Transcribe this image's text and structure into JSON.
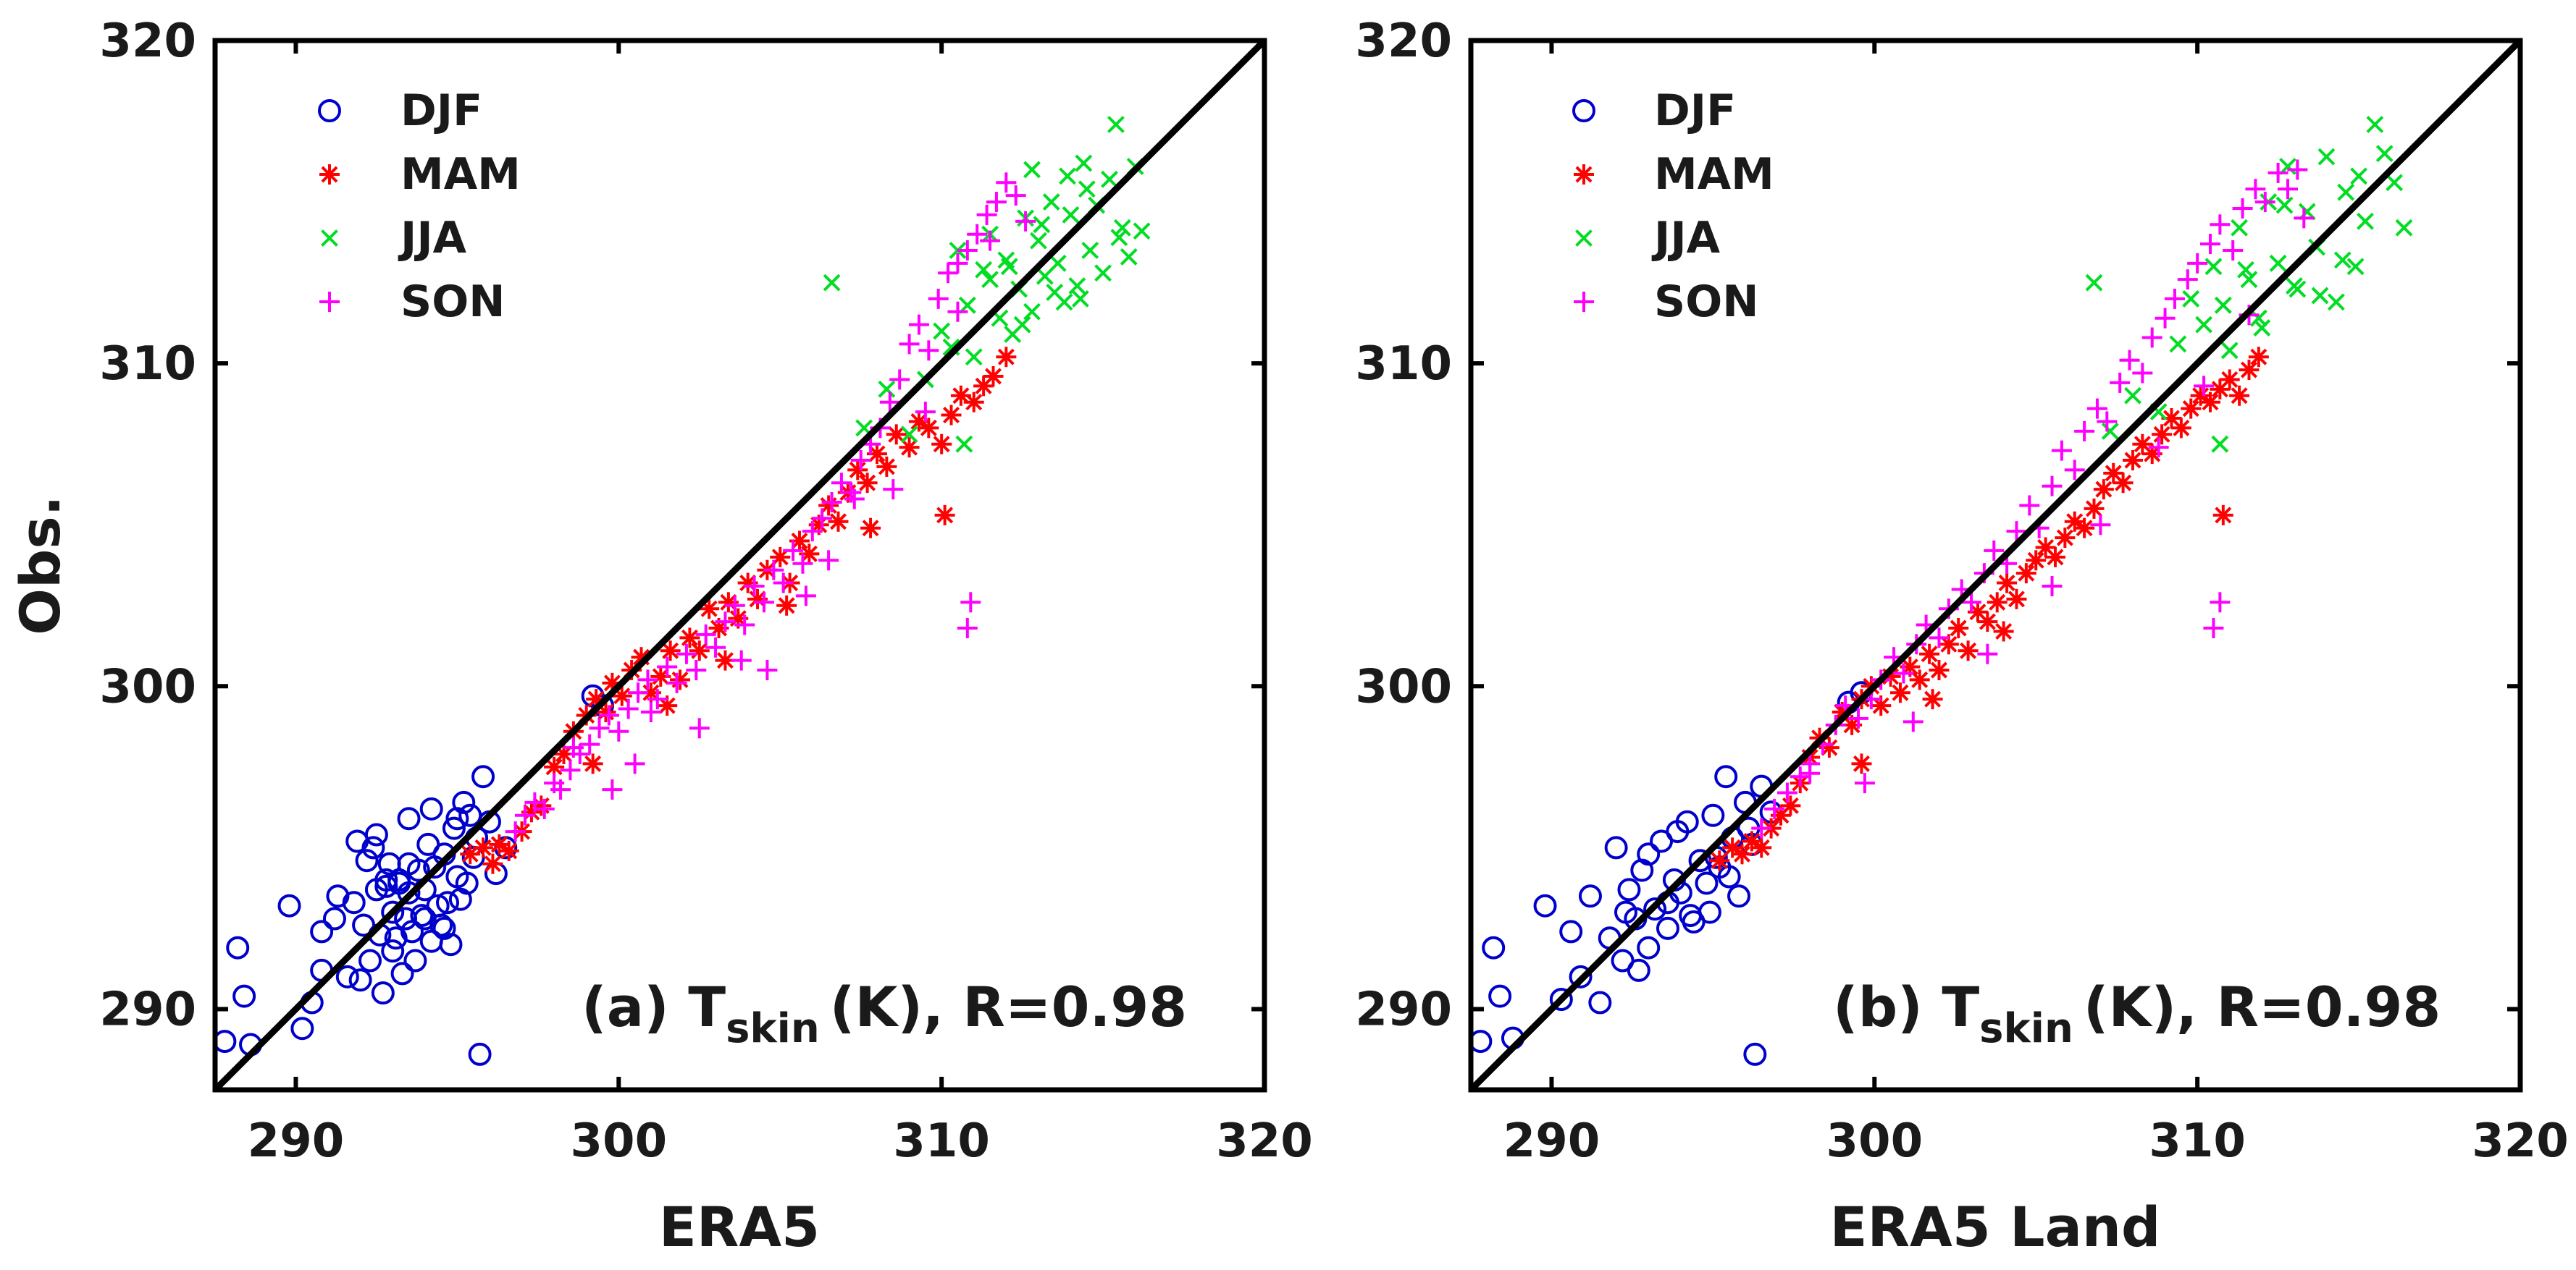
{
  "chart_data": [
    {
      "type": "scatter",
      "title": "(a) T_skin (K), R=0.98",
      "panel_label": "(a) T",
      "quantity_subscript": "skin",
      "unit_and_stat": "(K), R=0.98",
      "xlabel": "ERA5",
      "ylabel": "Obs.",
      "xlim": [
        287.5,
        320
      ],
      "ylim": [
        287.5,
        320
      ],
      "xticks": [
        290,
        300,
        310,
        320
      ],
      "yticks": [
        290,
        300,
        310,
        320
      ],
      "reference_line": "1:1",
      "legend_location": "top-left",
      "series": [
        {
          "name": "DJF",
          "marker": "circle",
          "color": "#0000cc",
          "x": [
            287.8,
            288.2,
            288.4,
            288.6,
            289.8,
            290.2,
            290.5,
            290.8,
            290.8,
            291.2,
            291.3,
            291.6,
            291.8,
            292.0,
            292.1,
            292.2,
            292.3,
            292.4,
            292.5,
            292.6,
            292.7,
            292.8,
            292.9,
            293.0,
            293.0,
            293.1,
            293.2,
            293.3,
            293.4,
            293.5,
            293.5,
            293.6,
            293.7,
            293.8,
            293.9,
            294.0,
            294.1,
            294.2,
            294.3,
            294.4,
            294.5,
            294.6,
            294.7,
            294.8,
            294.9,
            295.0,
            295.1,
            295.2,
            295.3,
            295.5,
            295.6,
            295.8,
            296.0,
            296.2,
            296.5,
            292.5,
            293.5,
            294.2,
            295.0,
            294.0,
            293.2,
            292.8,
            291.9,
            294.6,
            295.4,
            299.2,
            299.5,
            295.7
          ],
          "y": [
            289.0,
            291.9,
            290.4,
            288.9,
            293.2,
            289.4,
            290.2,
            291.2,
            292.4,
            292.8,
            293.5,
            291.0,
            293.3,
            290.9,
            292.6,
            294.6,
            291.5,
            295.0,
            293.7,
            292.3,
            290.5,
            293.8,
            294.5,
            291.8,
            293.0,
            292.2,
            294.0,
            291.1,
            292.8,
            293.6,
            295.9,
            292.4,
            291.5,
            294.3,
            292.9,
            293.7,
            295.1,
            292.1,
            294.4,
            293.2,
            292.6,
            294.8,
            293.3,
            292.0,
            295.6,
            294.1,
            293.4,
            296.4,
            293.9,
            294.7,
            295.3,
            297.2,
            295.8,
            294.2,
            295.0,
            295.4,
            294.5,
            296.2,
            295.9,
            292.8,
            293.9,
            294.0,
            295.2,
            292.5,
            296.0,
            299.7,
            299.4,
            288.6
          ]
        },
        {
          "name": "MAM",
          "marker": "asterisk",
          "color": "#ff0000",
          "x": [
            295.4,
            295.8,
            296.1,
            296.3,
            296.6,
            297.0,
            297.3,
            297.6,
            298.0,
            298.3,
            298.6,
            299.0,
            299.3,
            299.6,
            299.8,
            300.1,
            300.4,
            300.7,
            301.0,
            301.3,
            301.6,
            301.9,
            302.2,
            302.5,
            302.8,
            303.1,
            303.4,
            303.7,
            304.0,
            304.3,
            304.6,
            305.0,
            305.3,
            305.6,
            305.9,
            306.2,
            306.5,
            306.8,
            307.1,
            307.4,
            307.7,
            308.0,
            308.3,
            308.6,
            309.0,
            309.3,
            309.6,
            310.0,
            310.3,
            310.6,
            311.0,
            311.3,
            311.6,
            312.0,
            310.1,
            299.2,
            301.5,
            303.3,
            305.2,
            307.8
          ],
          "y": [
            294.8,
            295.0,
            294.5,
            295.1,
            294.9,
            295.5,
            296.1,
            296.3,
            297.5,
            297.9,
            298.6,
            299.1,
            299.6,
            299.2,
            300.1,
            299.7,
            300.5,
            300.9,
            299.8,
            300.3,
            301.1,
            300.2,
            301.5,
            301.1,
            302.4,
            301.8,
            302.6,
            302.1,
            303.2,
            302.7,
            303.6,
            304.0,
            303.2,
            304.5,
            304.1,
            305.0,
            305.6,
            305.1,
            306.0,
            306.7,
            306.3,
            307.2,
            306.8,
            307.8,
            307.4,
            308.2,
            308.0,
            307.5,
            308.4,
            309.0,
            308.8,
            309.3,
            309.6,
            310.2,
            305.3,
            297.6,
            299.4,
            300.8,
            302.5,
            304.9
          ]
        },
        {
          "name": "JJA",
          "marker": "x",
          "color": "#00dd22",
          "x": [
            306.6,
            307.6,
            308.3,
            309.0,
            309.5,
            310.0,
            310.3,
            310.5,
            310.8,
            311.0,
            311.3,
            311.5,
            311.8,
            312.0,
            312.2,
            312.4,
            312.6,
            312.8,
            313.0,
            313.2,
            313.4,
            313.6,
            313.8,
            314.0,
            314.2,
            314.4,
            314.6,
            314.8,
            315.0,
            315.2,
            315.4,
            315.6,
            315.8,
            316.0,
            316.2,
            312.5,
            313.5,
            314.5,
            315.5,
            311.5,
            312.8,
            313.9,
            314.3,
            313.1,
            312.1,
            310.7
          ],
          "y": [
            312.5,
            308.0,
            309.2,
            307.8,
            309.5,
            311.0,
            310.5,
            313.5,
            311.8,
            310.2,
            312.9,
            314.0,
            311.4,
            313.2,
            310.9,
            312.3,
            314.5,
            311.6,
            313.8,
            312.7,
            315.0,
            313.1,
            311.9,
            314.6,
            312.4,
            316.2,
            313.5,
            314.9,
            312.8,
            315.7,
            317.4,
            314.2,
            313.3,
            316.1,
            314.1,
            311.2,
            312.2,
            315.4,
            313.9,
            312.6,
            316.0,
            315.8,
            312.0,
            314.3,
            313.0,
            307.5
          ]
        },
        {
          "name": "SON",
          "marker": "plus",
          "color": "#ff00ff",
          "x": [
            296.8,
            297.1,
            297.4,
            297.7,
            298.0,
            298.2,
            298.5,
            298.8,
            299.1,
            299.4,
            299.7,
            300.0,
            300.3,
            300.6,
            300.9,
            301.2,
            301.5,
            301.8,
            302.1,
            302.4,
            302.7,
            303.0,
            303.3,
            303.6,
            303.9,
            304.2,
            304.5,
            304.8,
            305.1,
            305.4,
            305.7,
            306.0,
            306.3,
            306.6,
            306.9,
            307.2,
            307.5,
            307.8,
            308.1,
            308.4,
            308.7,
            309.0,
            309.3,
            309.6,
            309.9,
            310.2,
            310.5,
            310.8,
            311.1,
            311.4,
            311.7,
            312.0,
            312.3,
            312.6,
            310.9,
            310.8,
            299.8,
            300.5,
            302.5,
            304.6,
            306.5,
            308.5,
            309.5,
            310.5,
            311.5,
            298.6,
            301.0,
            303.8,
            305.8,
            307.3
          ],
          "y": [
            295.5,
            296.0,
            296.4,
            296.2,
            297.0,
            296.8,
            297.4,
            297.9,
            298.2,
            298.7,
            299.1,
            298.6,
            299.3,
            299.8,
            300.2,
            299.6,
            300.6,
            300.1,
            301.0,
            300.5,
            301.6,
            301.2,
            302.0,
            302.5,
            301.9,
            303.1,
            302.6,
            303.6,
            303.2,
            304.2,
            303.8,
            304.8,
            305.2,
            305.7,
            306.3,
            306.0,
            307.0,
            307.5,
            308.0,
            308.8,
            309.5,
            310.6,
            311.2,
            310.4,
            312.0,
            312.8,
            313.1,
            313.5,
            314.0,
            314.6,
            315.0,
            315.6,
            315.2,
            314.4,
            302.6,
            301.8,
            296.8,
            297.6,
            298.7,
            300.5,
            303.9,
            306.1,
            308.5,
            311.6,
            313.8,
            298.1,
            299.2,
            300.8,
            302.8,
            305.8
          ]
        }
      ]
    },
    {
      "type": "scatter",
      "title": "(b) T_skin (K), R=0.98",
      "panel_label": "(b) T",
      "quantity_subscript": "skin",
      "unit_and_stat": "(K), R=0.98",
      "xlabel": "ERA5 Land",
      "ylabel": "",
      "xlim": [
        287.5,
        320
      ],
      "ylim": [
        287.5,
        320
      ],
      "xticks": [
        290,
        300,
        310,
        320
      ],
      "yticks": [
        290,
        300,
        310,
        320
      ],
      "reference_line": "1:1",
      "legend_location": "top-left",
      "series": [
        {
          "name": "DJF",
          "marker": "circle",
          "color": "#0000cc",
          "x": [
            287.8,
            288.2,
            288.4,
            288.8,
            289.8,
            290.3,
            290.6,
            290.9,
            291.2,
            291.5,
            291.8,
            292.0,
            292.2,
            292.4,
            292.6,
            292.8,
            293.0,
            293.2,
            293.4,
            293.6,
            293.8,
            294.0,
            294.2,
            294.4,
            294.6,
            294.8,
            295.0,
            295.2,
            295.4,
            295.6,
            295.8,
            296.0,
            296.2,
            296.5,
            296.8,
            293.0,
            293.6,
            294.3,
            295.1,
            292.7,
            292.3,
            293.9,
            294.9,
            295.5,
            296.1,
            299.2,
            299.6,
            296.3
          ],
          "y": [
            289.0,
            291.9,
            290.4,
            289.1,
            293.2,
            290.3,
            292.4,
            291.0,
            293.5,
            290.2,
            292.2,
            295.0,
            291.5,
            293.7,
            292.8,
            294.3,
            291.9,
            293.1,
            295.2,
            292.5,
            294.0,
            293.6,
            295.8,
            292.7,
            294.6,
            293.9,
            296.0,
            294.4,
            297.2,
            295.3,
            293.5,
            296.4,
            295.1,
            296.9,
            296.1,
            294.8,
            293.3,
            292.9,
            294.7,
            291.2,
            293.0,
            295.5,
            293.0,
            294.1,
            295.6,
            299.5,
            299.8,
            288.6
          ]
        },
        {
          "name": "MAM",
          "marker": "asterisk",
          "color": "#ff0000",
          "x": [
            295.2,
            295.6,
            295.9,
            296.2,
            296.5,
            296.8,
            297.1,
            297.4,
            297.7,
            298.0,
            298.3,
            298.6,
            299.0,
            299.3,
            299.6,
            299.9,
            300.2,
            300.5,
            300.8,
            301.1,
            301.4,
            301.7,
            302.0,
            302.3,
            302.6,
            302.9,
            303.2,
            303.5,
            303.8,
            304.1,
            304.4,
            304.7,
            305.0,
            305.3,
            305.6,
            305.9,
            306.2,
            306.5,
            306.8,
            307.1,
            307.4,
            307.7,
            308.0,
            308.3,
            308.6,
            308.9,
            309.2,
            309.5,
            309.8,
            310.1,
            310.4,
            310.7,
            311.0,
            311.3,
            311.6,
            311.9,
            310.8,
            299.6,
            301.8,
            304.0
          ],
          "y": [
            294.6,
            295.0,
            294.8,
            295.2,
            295.0,
            295.6,
            296.0,
            296.3,
            297.0,
            297.8,
            298.4,
            298.1,
            299.2,
            298.8,
            299.6,
            300.0,
            299.4,
            300.3,
            299.8,
            300.6,
            300.2,
            301.0,
            300.5,
            301.3,
            301.8,
            301.1,
            302.3,
            302.0,
            302.6,
            303.2,
            302.7,
            303.5,
            303.9,
            304.3,
            304.0,
            304.6,
            305.1,
            304.9,
            305.5,
            306.1,
            306.6,
            306.3,
            307.0,
            307.5,
            307.2,
            307.8,
            308.3,
            308.0,
            308.6,
            309.0,
            308.8,
            309.2,
            309.5,
            309.0,
            309.8,
            310.2,
            305.3,
            297.6,
            299.6,
            301.7
          ]
        },
        {
          "name": "JJA",
          "marker": "x",
          "color": "#00dd22",
          "x": [
            306.8,
            307.3,
            308.0,
            308.8,
            309.4,
            309.8,
            310.2,
            310.5,
            310.8,
            311.0,
            311.3,
            311.6,
            311.9,
            312.2,
            312.5,
            312.8,
            313.1,
            313.4,
            313.7,
            314.0,
            314.3,
            314.6,
            314.9,
            315.2,
            315.5,
            315.8,
            316.1,
            316.4,
            312.0,
            313.0,
            314.5,
            315.0,
            311.5,
            312.7,
            313.8,
            310.7
          ],
          "y": [
            312.5,
            307.9,
            309.0,
            308.5,
            310.6,
            312.0,
            311.2,
            313.0,
            311.8,
            310.4,
            314.2,
            312.6,
            311.4,
            315.0,
            313.1,
            316.1,
            312.3,
            314.7,
            313.6,
            316.4,
            311.9,
            315.3,
            313.0,
            314.4,
            317.4,
            316.5,
            315.6,
            314.2,
            311.1,
            312.4,
            313.2,
            315.8,
            312.9,
            314.9,
            312.1,
            307.5
          ]
        },
        {
          "name": "SON",
          "marker": "plus",
          "color": "#ff00ff",
          "x": [
            296.5,
            296.9,
            297.3,
            297.7,
            298.0,
            298.4,
            298.8,
            299.1,
            299.5,
            299.9,
            300.2,
            300.6,
            300.9,
            301.3,
            301.6,
            302.0,
            302.3,
            302.7,
            303.0,
            303.4,
            303.7,
            304.1,
            304.4,
            304.8,
            305.1,
            305.5,
            305.8,
            306.2,
            306.5,
            306.9,
            307.2,
            307.6,
            307.9,
            308.3,
            308.6,
            309.0,
            309.3,
            309.7,
            310.0,
            310.4,
            310.7,
            311.1,
            311.4,
            311.8,
            312.1,
            312.5,
            312.8,
            313.1,
            310.7,
            310.5,
            299.7,
            301.2,
            303.5,
            305.5,
            307.0,
            308.8,
            310.2,
            311.6,
            313.3,
            298.0
          ],
          "y": [
            295.6,
            296.2,
            296.7,
            297.2,
            297.6,
            298.2,
            298.8,
            299.4,
            299.0,
            299.6,
            300.2,
            300.9,
            300.4,
            301.3,
            301.9,
            301.5,
            302.4,
            303.0,
            302.6,
            303.5,
            304.2,
            303.8,
            304.8,
            305.6,
            304.9,
            306.2,
            307.3,
            306.7,
            307.9,
            308.6,
            308.2,
            309.4,
            310.1,
            309.7,
            310.8,
            311.4,
            312.0,
            312.6,
            313.1,
            313.7,
            314.3,
            313.5,
            314.8,
            315.4,
            315.0,
            315.9,
            315.4,
            316.0,
            302.6,
            301.8,
            297.0,
            298.9,
            301.0,
            303.1,
            305.0,
            307.4,
            309.3,
            311.5,
            314.5,
            297.3
          ]
        }
      ]
    }
  ]
}
